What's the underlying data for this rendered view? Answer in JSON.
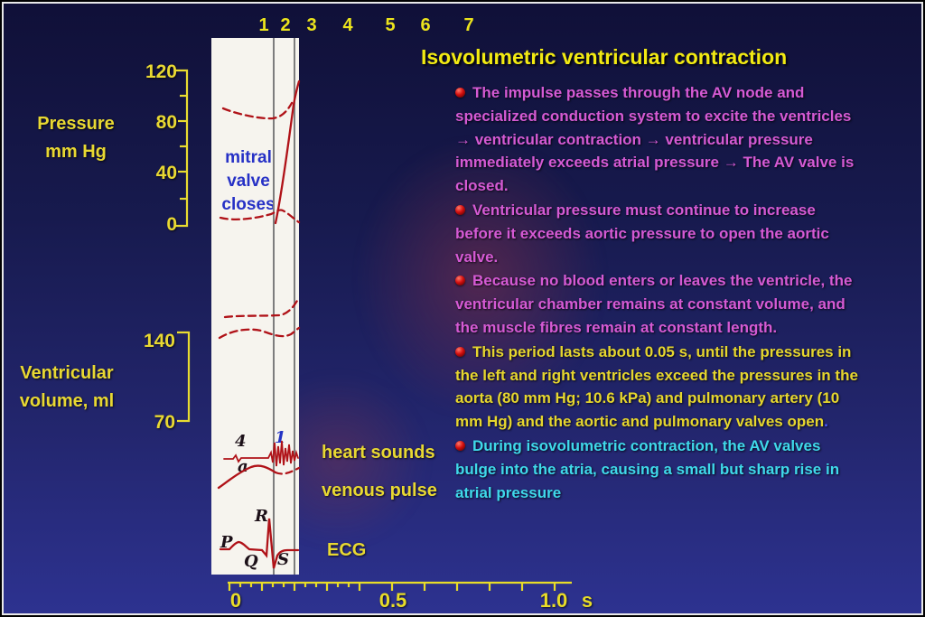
{
  "palette": {
    "magenta": "#d55ad4",
    "yellow": "#e6d62e",
    "cyan": "#3fd9ea",
    "blue": "#4a5cff",
    "title_yellow": "#f2ea12",
    "label_yellow": "#e8d832",
    "annotation_blue": "#2631c6",
    "trace_red": "#b01218"
  },
  "phase_numbers": [
    "1",
    "2",
    "3",
    "4",
    "5",
    "6",
    "7"
  ],
  "title": "Isovolumetric ventricular contraction",
  "bullets": [
    {
      "segments": [
        {
          "color": "magenta",
          "text": "The impulse passes through the AV node and\nspecialized conduction system to excite the ventricles\n→ ventricular contraction → ventricular pressure\nimmediately exceeds atrial pressure → The AV valve is\nclosed."
        }
      ]
    },
    {
      "segments": [
        {
          "color": "magenta",
          "text": "Ventricular pressure must continue to increase\nbefore it exceeds aortic pressure to open the aortic\nvalve."
        }
      ]
    },
    {
      "segments": [
        {
          "color": "magenta",
          "text": "Because no blood enters or leaves the ventricle, the\nventricular chamber remains at constant volume, and\nthe muscle fibres remain at constant length."
        }
      ]
    },
    {
      "segments": [
        {
          "color": "yellow",
          "text": "This period lasts about 0.05 s, until the pressures in\nthe left and right ventricles exceed the pressures in the\naorta (80 mm Hg; 10.6 kPa) and pulmonary artery (10\nmm Hg) and the aortic and pulmonary valves open"
        },
        {
          "color": "blue",
          "text": "."
        }
      ]
    },
    {
      "segments": [
        {
          "color": "cyan",
          "text": "During isovolumetric contraction, the AV valves\nbulge into the atria, causing a small but sharp rise in\natrial pressure"
        }
      ]
    }
  ],
  "pressure_axis": {
    "title_line1": "Pressure",
    "title_line2": "mm Hg",
    "ticks": [
      "120",
      "80",
      "40",
      "0"
    ]
  },
  "volume_axis": {
    "title_line1": "Ventricular",
    "title_line2": "volume, ml",
    "ticks": [
      "140",
      "70"
    ]
  },
  "annotation": {
    "mitral_lines": [
      "mitral",
      "valve",
      "closes"
    ]
  },
  "trace_labels": {
    "heart_sounds": "heart sounds",
    "venous_pulse": "venous pulse",
    "ecg": "ECG"
  },
  "wave_labels": {
    "fourth_sound": "4",
    "first_sound": "1",
    "a_wave": "a",
    "p": "P",
    "q": "Q",
    "r": "R",
    "s": "S"
  },
  "time_axis": {
    "labels": [
      "0",
      "0.5",
      "1.0"
    ],
    "unit": "s"
  }
}
